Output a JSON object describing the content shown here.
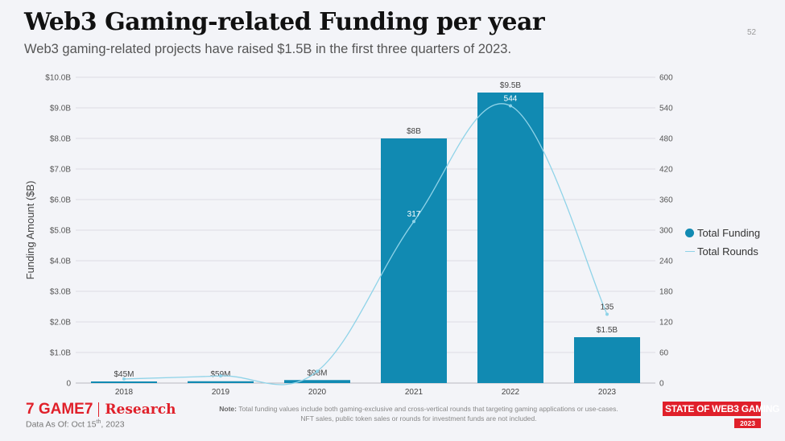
{
  "page": {
    "title": "Web3 Gaming-related Funding per year",
    "subtitle": "Web3 gaming-related projects have raised $1.5B in the first three quarters of 2023.",
    "page_number": "52",
    "footer": {
      "logo_mark": "7 GAME7",
      "logo_research": "Research",
      "as_of_prefix": "Data As Of: Oct 15",
      "as_of_sup": "th",
      "as_of_suffix": ", 2023",
      "note_label": "Note:",
      "note_text": "Total funding values include both gaming-exclusive and cross-vertical rounds that targeting gaming applications or use-cases.",
      "note_text2": "NFT sales, public token sales or rounds for investment funds are not included.",
      "badge_text": "STATE OF WEB3 GAMING",
      "badge_year": "2023"
    }
  },
  "chart_data": {
    "type": "bar",
    "categories": [
      "2018",
      "2019",
      "2020",
      "2021",
      "2022",
      "2023"
    ],
    "ylabel": "Funding Amount ($B)",
    "ylim": [
      0,
      10
    ],
    "y_ticks": [
      "0",
      "$1.0B",
      "$2.0B",
      "$3.0B",
      "$4.0B",
      "$5.0B",
      "$6.0B",
      "$7.0B",
      "$8.0B",
      "$9.0B",
      "$10.0B"
    ],
    "y2lim": [
      0,
      600
    ],
    "y2_ticks": [
      "0",
      "60",
      "120",
      "180",
      "240",
      "300",
      "360",
      "420",
      "480",
      "540",
      "600"
    ],
    "grid": true,
    "legend_position": "right",
    "series": [
      {
        "name": "Total Funding",
        "type": "bar",
        "axis": "left",
        "color": "#118ab2",
        "values": [
          0.045,
          0.059,
          0.098,
          8.0,
          9.5,
          1.5
        ],
        "labels": [
          "$45M",
          "$59M",
          "$98M",
          "$8B",
          "$9.5B",
          "$1.5B"
        ]
      },
      {
        "name": "Total Rounds",
        "type": "line",
        "axis": "right",
        "color": "#8fd3e8",
        "values": [
          8,
          14,
          23,
          317,
          544,
          135
        ],
        "labels": [
          "",
          "",
          "",
          "317",
          "544",
          "135"
        ]
      }
    ]
  }
}
